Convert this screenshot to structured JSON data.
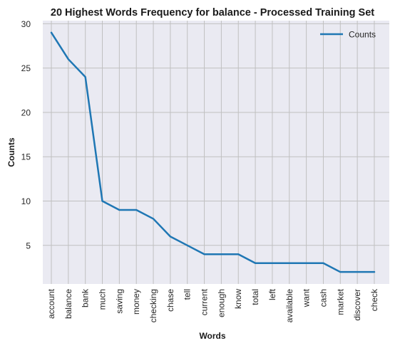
{
  "chart_data": {
    "type": "line",
    "title": "20 Highest Words Frequency for balance - Processed Training Set",
    "xlabel": "Words",
    "ylabel": "Counts",
    "categories": [
      "account",
      "balance",
      "bank",
      "much",
      "saving",
      "money",
      "checking",
      "chase",
      "tell",
      "current",
      "enough",
      "know",
      "total",
      "left",
      "available",
      "want",
      "cash",
      "market",
      "discover",
      "check"
    ],
    "series": [
      {
        "name": "Counts",
        "values": [
          29,
          26,
          24,
          10,
          9,
          9,
          8,
          6,
          5,
          4,
          4,
          4,
          3,
          3,
          3,
          3,
          3,
          2,
          2,
          2
        ],
        "color": "#1f77b4"
      }
    ],
    "yticks": [
      5,
      10,
      15,
      20,
      25,
      30
    ],
    "ylim": [
      0.65,
      30.35
    ],
    "grid": true,
    "legend_position": "top-right",
    "background_color": "#eaeaf2",
    "grid_color": "#c0c0c0"
  }
}
